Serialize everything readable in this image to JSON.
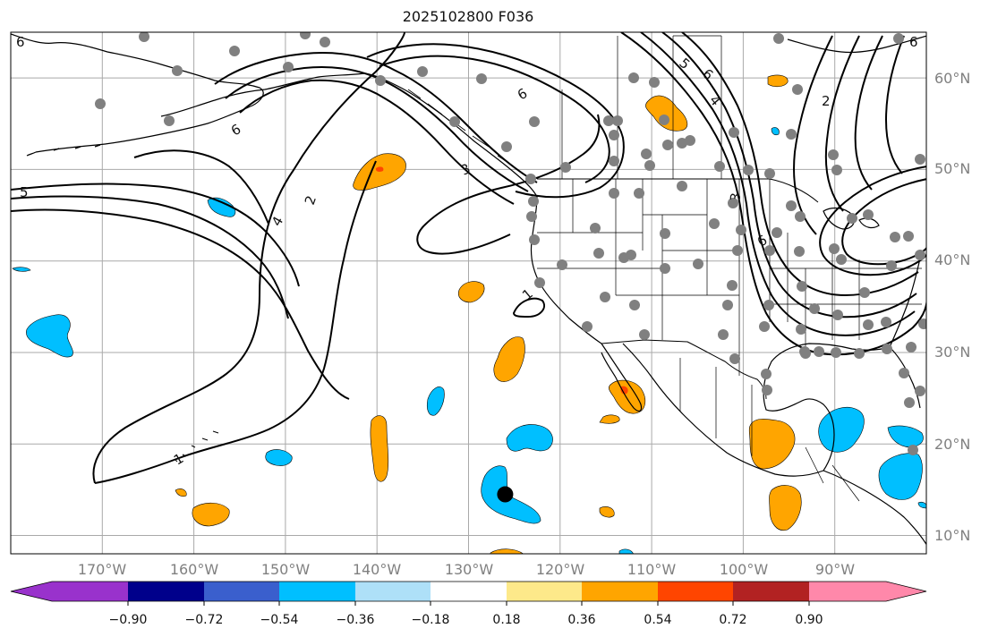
{
  "title": "2025102800 F036",
  "map": {
    "projection": "PlateCarree",
    "extent": {
      "lon_min": -180,
      "lon_max": -80,
      "lat_min": 8,
      "lat_max": 65
    },
    "gridlines": true,
    "grid_color": "#a9a9a9",
    "coastline_color": "#000000",
    "station_marker_color": "#808080",
    "storm_marker_color": "#000000",
    "storm_marker": {
      "lon": -126,
      "lat": 14.5
    }
  },
  "lon_labels": [
    "170°W",
    "160°W",
    "150°W",
    "140°W",
    "130°W",
    "120°W",
    "110°W",
    "100°W",
    "90°W"
  ],
  "lat_labels": [
    "10°N",
    "20°N",
    "30°N",
    "40°N",
    "50°N",
    "60°N"
  ],
  "contour_labels": [
    "1",
    "1",
    "2",
    "2",
    "3",
    "3",
    "4",
    "4",
    "5",
    "5",
    "6",
    "6",
    "6",
    "6",
    "6",
    "6"
  ],
  "colorbar": {
    "labels": [
      "−0.90",
      "−0.72",
      "−0.54",
      "−0.36",
      "−0.18",
      "0.18",
      "0.36",
      "0.54",
      "0.72",
      "0.90"
    ],
    "colors": [
      "#9932cc",
      "#00008b",
      "#3a5fcd",
      "#00bfff",
      "#aee0f8",
      "#ffffff",
      "#fde98a",
      "#ffa500",
      "#ff4500",
      "#b22222",
      "#ff88aa"
    ],
    "extend": "both"
  }
}
